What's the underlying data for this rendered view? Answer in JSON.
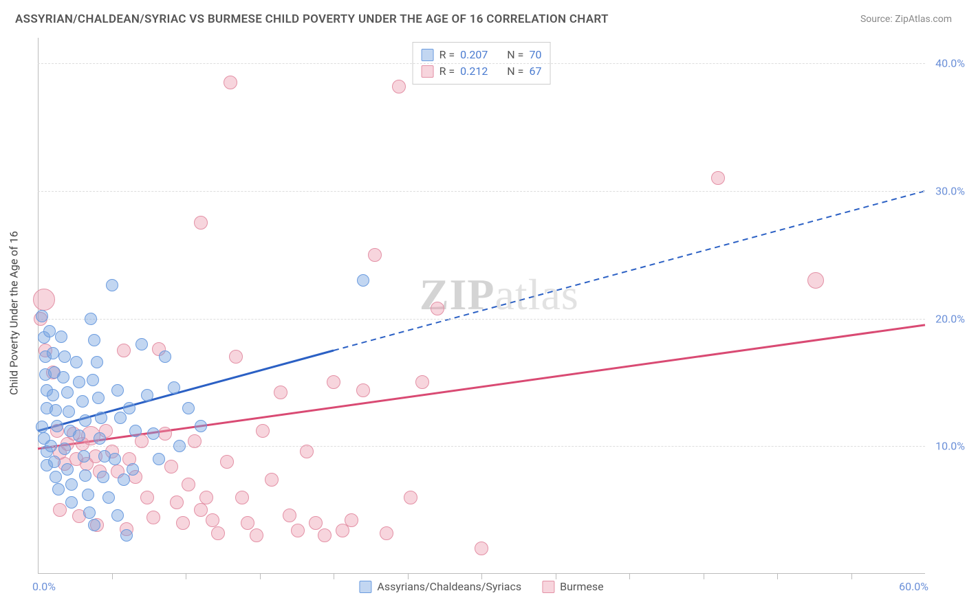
{
  "title": "ASSYRIAN/CHALDEAN/SYRIAC VS BURMESE CHILD POVERTY UNDER THE AGE OF 16 CORRELATION CHART",
  "source": "Source: ZipAtlas.com",
  "y_axis_label": "Child Poverty Under the Age of 16",
  "watermark_bold": "ZIP",
  "watermark_rest": "atlas",
  "axes": {
    "xlim": [
      0,
      60
    ],
    "ylim": [
      0,
      42
    ],
    "x_origin_label": "0.0%",
    "x_max_label": "60.0%",
    "x_tick_step": 5,
    "y_gridlines": [
      10,
      20,
      30,
      40
    ],
    "y_tick_labels": [
      "10.0%",
      "20.0%",
      "30.0%",
      "40.0%"
    ]
  },
  "colors": {
    "blue_fill": "rgba(120,165,225,0.45)",
    "blue_stroke": "#6a9bdf",
    "pink_fill": "rgba(235,150,170,0.40)",
    "pink_stroke": "#e390a5",
    "blue_line": "#2b60c4",
    "pink_line": "#d94a73",
    "grid": "#dddddd",
    "axis": "#bbbbbb",
    "tick_text": "#6a8fd8"
  },
  "legend_top": {
    "rows": [
      {
        "swatch": "blue",
        "r": "0.207",
        "n": "70"
      },
      {
        "swatch": "pink",
        "r": "0.212",
        "n": "67"
      }
    ],
    "r_label": "R =",
    "n_label": "N ="
  },
  "legend_bottom": {
    "items": [
      {
        "swatch": "blue",
        "label": "Assyrians/Chaldeans/Syriacs"
      },
      {
        "swatch": "pink",
        "label": "Burmese"
      }
    ]
  },
  "trend_lines": {
    "blue": {
      "x1": 0,
      "y1": 11.2,
      "x_solid_end": 20,
      "y_solid_end": 17.5,
      "x2": 60,
      "y2": 30.0
    },
    "pink": {
      "x1": 0,
      "y1": 9.8,
      "x2": 60,
      "y2": 19.5
    }
  },
  "point_radius": 9,
  "series": {
    "blue": [
      [
        0.3,
        20.2
      ],
      [
        0.4,
        18.5
      ],
      [
        0.5,
        17.0
      ],
      [
        0.5,
        15.6
      ],
      [
        0.6,
        14.4
      ],
      [
        0.6,
        13.0
      ],
      [
        0.3,
        11.5
      ],
      [
        0.4,
        10.6
      ],
      [
        0.6,
        9.6
      ],
      [
        0.6,
        8.5
      ],
      [
        0.8,
        19.0
      ],
      [
        1.0,
        17.3
      ],
      [
        1.1,
        15.8
      ],
      [
        1.0,
        14.0
      ],
      [
        1.2,
        12.8
      ],
      [
        1.3,
        11.6
      ],
      [
        0.9,
        10.0
      ],
      [
        1.1,
        8.8
      ],
      [
        1.2,
        7.6
      ],
      [
        1.4,
        6.6
      ],
      [
        1.6,
        18.6
      ],
      [
        1.8,
        17.0
      ],
      [
        1.7,
        15.4
      ],
      [
        2.0,
        14.2
      ],
      [
        2.1,
        12.7
      ],
      [
        2.2,
        11.2
      ],
      [
        1.8,
        9.8
      ],
      [
        2.0,
        8.2
      ],
      [
        2.3,
        7.0
      ],
      [
        2.3,
        5.6
      ],
      [
        2.6,
        16.6
      ],
      [
        2.8,
        15.0
      ],
      [
        3.0,
        13.5
      ],
      [
        3.2,
        12.0
      ],
      [
        2.8,
        10.8
      ],
      [
        3.1,
        9.2
      ],
      [
        3.2,
        7.7
      ],
      [
        3.4,
        6.2
      ],
      [
        3.5,
        4.8
      ],
      [
        3.8,
        3.8
      ],
      [
        3.6,
        20.0
      ],
      [
        3.8,
        18.3
      ],
      [
        4.0,
        16.6
      ],
      [
        3.7,
        15.2
      ],
      [
        4.1,
        13.8
      ],
      [
        4.3,
        12.2
      ],
      [
        4.2,
        10.6
      ],
      [
        4.5,
        9.2
      ],
      [
        4.4,
        7.6
      ],
      [
        4.8,
        6.0
      ],
      [
        5.0,
        22.6
      ],
      [
        5.4,
        14.4
      ],
      [
        5.6,
        12.2
      ],
      [
        5.2,
        9.0
      ],
      [
        5.8,
        7.4
      ],
      [
        5.4,
        4.6
      ],
      [
        6.0,
        3.0
      ],
      [
        6.2,
        13.0
      ],
      [
        6.6,
        11.2
      ],
      [
        6.4,
        8.2
      ],
      [
        7.0,
        18.0
      ],
      [
        7.4,
        14.0
      ],
      [
        7.8,
        11.0
      ],
      [
        8.2,
        9.0
      ],
      [
        8.6,
        17.0
      ],
      [
        9.2,
        14.6
      ],
      [
        9.6,
        10.0
      ],
      [
        10.2,
        13.0
      ],
      [
        11.0,
        11.6
      ],
      [
        22.0,
        23.0
      ]
    ],
    "pink": [
      [
        0.4,
        21.5,
        16
      ],
      [
        0.2,
        20.0,
        10
      ],
      [
        0.5,
        17.5,
        10
      ],
      [
        1.0,
        15.8,
        10
      ],
      [
        1.3,
        11.2,
        10
      ],
      [
        1.5,
        9.5,
        10
      ],
      [
        1.8,
        8.6,
        10
      ],
      [
        2.0,
        10.2,
        10
      ],
      [
        2.4,
        11.0,
        10
      ],
      [
        2.6,
        9.0,
        10
      ],
      [
        3.0,
        10.2,
        10
      ],
      [
        3.3,
        8.6,
        10
      ],
      [
        3.6,
        10.8,
        14
      ],
      [
        3.9,
        9.2,
        10
      ],
      [
        4.2,
        8.0,
        10
      ],
      [
        4.6,
        11.2,
        10
      ],
      [
        5.0,
        9.6,
        10
      ],
      [
        5.4,
        8.0,
        10
      ],
      [
        5.8,
        17.5,
        10
      ],
      [
        6.2,
        9.0,
        10
      ],
      [
        6.6,
        7.6,
        10
      ],
      [
        7.0,
        10.4,
        10
      ],
      [
        7.4,
        6.0,
        10
      ],
      [
        7.8,
        4.4,
        10
      ],
      [
        8.2,
        17.6,
        10
      ],
      [
        8.6,
        11.0,
        10
      ],
      [
        9.0,
        8.4,
        10
      ],
      [
        9.4,
        5.6,
        10
      ],
      [
        9.8,
        4.0,
        10
      ],
      [
        10.2,
        7.0,
        10
      ],
      [
        10.6,
        10.4,
        10
      ],
      [
        11.0,
        27.5,
        10
      ],
      [
        11.4,
        6.0,
        10
      ],
      [
        11.8,
        4.2,
        10
      ],
      [
        12.2,
        3.2,
        10
      ],
      [
        12.8,
        8.8,
        10
      ],
      [
        13.4,
        17.0,
        10
      ],
      [
        13.8,
        6.0,
        10
      ],
      [
        14.2,
        4.0,
        10
      ],
      [
        14.8,
        3.0,
        10
      ],
      [
        15.2,
        11.2,
        10
      ],
      [
        15.8,
        7.4,
        10
      ],
      [
        16.4,
        14.2,
        10
      ],
      [
        17.0,
        4.6,
        10
      ],
      [
        17.6,
        3.4,
        10
      ],
      [
        18.2,
        9.6,
        10
      ],
      [
        18.8,
        4.0,
        10
      ],
      [
        19.4,
        3.0,
        10
      ],
      [
        20.0,
        15.0,
        10
      ],
      [
        20.6,
        3.4,
        10
      ],
      [
        21.2,
        4.2,
        10
      ],
      [
        22.0,
        14.4,
        10
      ],
      [
        22.8,
        25.0,
        10
      ],
      [
        23.6,
        3.2,
        10
      ],
      [
        24.4,
        38.2,
        10
      ],
      [
        25.2,
        6.0,
        10
      ],
      [
        26.0,
        15.0,
        10
      ],
      [
        27.0,
        20.8,
        10
      ],
      [
        30.0,
        2.0,
        10
      ],
      [
        13.0,
        38.5,
        10
      ],
      [
        46.0,
        31.0,
        10
      ],
      [
        52.6,
        23.0,
        12
      ],
      [
        11.0,
        5.0,
        10
      ],
      [
        6.0,
        3.5,
        10
      ],
      [
        4.0,
        3.8,
        10
      ],
      [
        2.8,
        4.5,
        10
      ],
      [
        1.5,
        5.0,
        10
      ]
    ]
  }
}
